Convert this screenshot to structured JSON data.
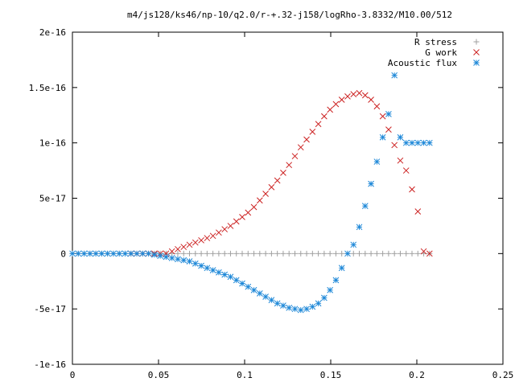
{
  "chart_data": {
    "type": "scatter",
    "title": "m4/js128/ks46/np-10/q2.0/r-+.32-j158/logRho-3.8332/M10.00/512",
    "xlim": [
      0,
      0.25
    ],
    "ylim": [
      -1e-16,
      2e-16
    ],
    "grid": false,
    "legend_position": "top-right",
    "x_ticks": [
      {
        "value": 0,
        "label": "0"
      },
      {
        "value": 0.05,
        "label": "0.05"
      },
      {
        "value": 0.1,
        "label": "0.1"
      },
      {
        "value": 0.15,
        "label": "0.15"
      },
      {
        "value": 0.2,
        "label": "0.2"
      },
      {
        "value": 0.25,
        "label": "0.25"
      }
    ],
    "y_ticks": [
      {
        "value": -1e-16,
        "label": "-1e-16"
      },
      {
        "value": -5e-17,
        "label": "-5e-17"
      },
      {
        "value": 0,
        "label": "0"
      },
      {
        "value": 5e-17,
        "label": "5e-17"
      },
      {
        "value": 1e-16,
        "label": "1e-16"
      },
      {
        "value": 1.5e-16,
        "label": "1.5e-16"
      },
      {
        "value": 2e-16,
        "label": "2e-16"
      }
    ],
    "series": [
      {
        "name": "R stress",
        "marker": "plus",
        "color": "#a0a0a0",
        "x": [
          0.0,
          0.0034,
          0.0068,
          0.0102,
          0.0136,
          0.017,
          0.0204,
          0.0238,
          0.0272,
          0.0306,
          0.034,
          0.0374,
          0.0408,
          0.0442,
          0.0476,
          0.051,
          0.0544,
          0.0578,
          0.0612,
          0.0646,
          0.068,
          0.0714,
          0.0748,
          0.0782,
          0.0816,
          0.085,
          0.0884,
          0.0918,
          0.0952,
          0.0986,
          0.102,
          0.1054,
          0.1088,
          0.1122,
          0.1156,
          0.119,
          0.1224,
          0.1258,
          0.1292,
          0.1326,
          0.136,
          0.1394,
          0.1428,
          0.1462,
          0.1496,
          0.153,
          0.1564,
          0.1598,
          0.1632,
          0.1666,
          0.17,
          0.1734,
          0.1768,
          0.1802,
          0.1836,
          0.187,
          0.1904,
          0.1938,
          0.1972,
          0.2006,
          0.204,
          0.2074
        ],
        "y": [
          0,
          0,
          0,
          0,
          0,
          0,
          0,
          0,
          0,
          0,
          0,
          0,
          0,
          0,
          0,
          0,
          0,
          0,
          0,
          0,
          0,
          0,
          0,
          0,
          0,
          0,
          0,
          0,
          0,
          0,
          0,
          0,
          0,
          0,
          0,
          0,
          0,
          0,
          0,
          0,
          0,
          0,
          0,
          0,
          0,
          0,
          0,
          0,
          0,
          0,
          0,
          0,
          0,
          0,
          0,
          0,
          0,
          0,
          0,
          0,
          0,
          0
        ]
      },
      {
        "name": "G work",
        "marker": "cross",
        "color": "#cc2222",
        "x": [
          0.034,
          0.0374,
          0.0408,
          0.0442,
          0.0476,
          0.051,
          0.0544,
          0.0578,
          0.0612,
          0.0646,
          0.068,
          0.0714,
          0.0748,
          0.0782,
          0.0816,
          0.085,
          0.0884,
          0.0918,
          0.0952,
          0.0986,
          0.102,
          0.1054,
          0.1088,
          0.1122,
          0.1156,
          0.119,
          0.1224,
          0.1258,
          0.1292,
          0.1326,
          0.136,
          0.1394,
          0.1428,
          0.1462,
          0.1496,
          0.153,
          0.1564,
          0.1598,
          0.1632,
          0.1666,
          0.17,
          0.1734,
          0.1768,
          0.1802,
          0.1836,
          0.187,
          0.1904,
          0.1938,
          0.1972,
          0.2006,
          0.204,
          0.2074
        ],
        "y": [
          0,
          0,
          0,
          0,
          0,
          0,
          0,
          2e-18,
          4e-18,
          6e-18,
          8e-18,
          1e-17,
          1.2e-17,
          1.4e-17,
          1.6e-17,
          1.9e-17,
          2.2e-17,
          2.5e-17,
          2.9e-17,
          3.3e-17,
          3.7e-17,
          4.2e-17,
          4.8e-17,
          5.4e-17,
          6e-17,
          6.6e-17,
          7.3e-17,
          8e-17,
          8.8e-17,
          9.6e-17,
          1.03e-16,
          1.1e-16,
          1.17e-16,
          1.24e-16,
          1.3e-16,
          1.35e-16,
          1.39e-16,
          1.42e-16,
          1.44e-16,
          1.45e-16,
          1.43e-16,
          1.39e-16,
          1.33e-16,
          1.24e-16,
          1.12e-16,
          9.8e-17,
          8.4e-17,
          7.5e-17,
          5.8e-17,
          3.8e-17,
          2e-18,
          0
        ]
      },
      {
        "name": "Acoustic flux",
        "marker": "star",
        "color": "#1e88d8",
        "x": [
          0.0,
          0.0034,
          0.0068,
          0.0102,
          0.0136,
          0.017,
          0.0204,
          0.0238,
          0.0272,
          0.0306,
          0.034,
          0.0374,
          0.0408,
          0.0442,
          0.0476,
          0.051,
          0.0544,
          0.0578,
          0.0612,
          0.0646,
          0.068,
          0.0714,
          0.0748,
          0.0782,
          0.0816,
          0.085,
          0.0884,
          0.0918,
          0.0952,
          0.0986,
          0.102,
          0.1054,
          0.1088,
          0.1122,
          0.1156,
          0.119,
          0.1224,
          0.1258,
          0.1292,
          0.1326,
          0.136,
          0.1394,
          0.1428,
          0.1462,
          0.1496,
          0.153,
          0.1564,
          0.1598,
          0.1632,
          0.1666,
          0.17,
          0.1734,
          0.1768,
          0.1802,
          0.1836,
          0.187,
          0.1904,
          0.1938,
          0.1972,
          0.2006,
          0.204,
          0.2074
        ],
        "y": [
          0,
          0,
          0,
          0,
          0,
          0,
          0,
          0,
          0,
          0,
          0,
          0,
          0,
          0,
          -1e-18,
          -2e-18,
          -3e-18,
          -4e-18,
          -5e-18,
          -6e-18,
          -7e-18,
          -9e-18,
          -1.1e-17,
          -1.3e-17,
          -1.5e-17,
          -1.7e-17,
          -1.9e-17,
          -2.1e-17,
          -2.4e-17,
          -2.7e-17,
          -3e-17,
          -3.3e-17,
          -3.6e-17,
          -3.9e-17,
          -4.2e-17,
          -4.5e-17,
          -4.7e-17,
          -4.9e-17,
          -5e-17,
          -5.1e-17,
          -5e-17,
          -4.8e-17,
          -4.5e-17,
          -4e-17,
          -3.3e-17,
          -2.4e-17,
          -1.3e-17,
          0,
          8e-18,
          2.4e-17,
          4.3e-17,
          6.3e-17,
          8.3e-17,
          1.05e-16,
          1.26e-16,
          1.61e-16,
          1.05e-16,
          1e-16,
          1e-16,
          1e-16,
          1e-16,
          1e-16
        ]
      }
    ]
  }
}
